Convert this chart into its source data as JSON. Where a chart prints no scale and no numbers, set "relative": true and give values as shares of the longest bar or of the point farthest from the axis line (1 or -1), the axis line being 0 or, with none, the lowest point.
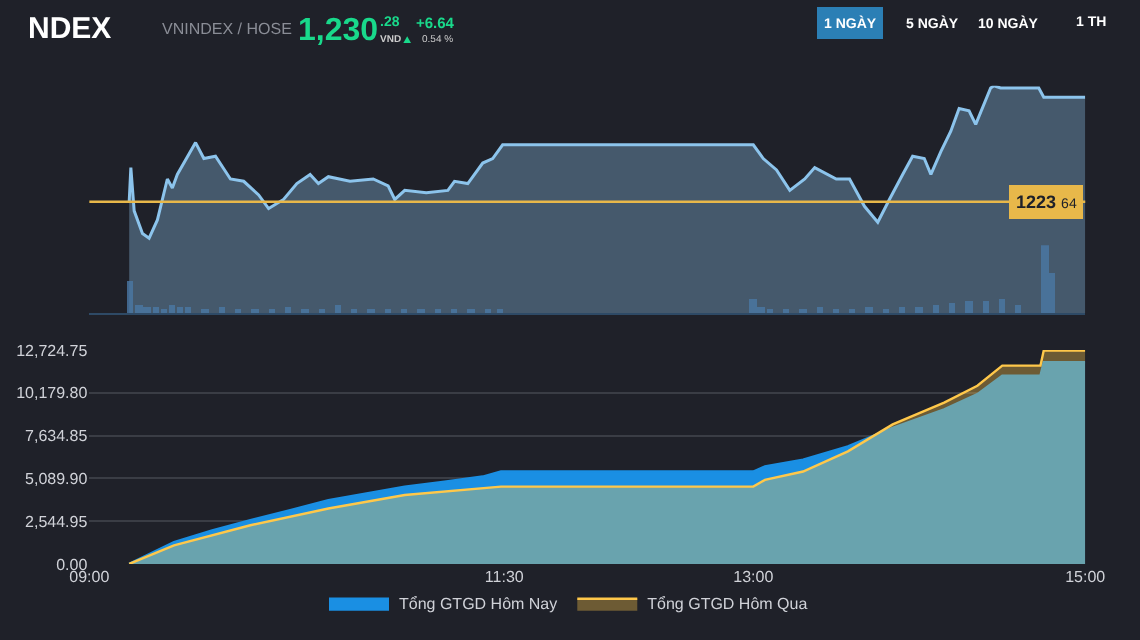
{
  "chart_data": [
    {
      "type": "other",
      "annotations": [
        "NDEX",
        "VNINDEX / HOSE",
        "1,230",
        ".28",
        "VND",
        "+6.64",
        "0.54 %",
        "1 NGÀY",
        "5 NGÀY",
        "10 NGÀY",
        "1 TH"
      ]
    },
    {
      "type": "area",
      "relative": true,
      "xlim": [
        9,
        15
      ],
      "x": [
        9.24,
        9.25,
        9.27,
        9.32,
        9.36,
        9.41,
        9.47,
        9.5,
        9.53,
        9.64,
        9.69,
        9.76,
        9.85,
        9.93,
        10.02,
        10.08,
        10.17,
        10.25,
        10.33,
        10.38,
        10.44,
        10.57,
        10.71,
        10.8,
        10.84,
        10.9,
        11.03,
        11.16,
        11.2,
        11.28,
        11.37,
        11.43,
        11.49,
        13.0,
        13.06,
        13.14,
        13.22,
        13.31,
        13.37,
        13.5,
        13.58,
        13.67,
        13.75,
        13.82,
        13.9,
        13.96,
        14.03,
        14.07,
        14.13,
        14.19,
        14.24,
        14.3,
        14.34,
        14.43,
        14.45,
        14.49,
        14.72,
        14.75,
        15.0
      ],
      "series": [
        {
          "color": "#8cc4ec",
          "values": [
            0.49,
            0.64,
            0.45,
            0.35,
            0.33,
            0.41,
            0.59,
            0.55,
            0.61,
            0.75,
            0.68,
            0.69,
            0.59,
            0.58,
            0.52,
            0.46,
            0.5,
            0.57,
            0.61,
            0.57,
            0.6,
            0.58,
            0.59,
            0.56,
            0.5,
            0.54,
            0.53,
            0.54,
            0.58,
            0.57,
            0.66,
            0.68,
            0.74,
            0.74,
            0.68,
            0.63,
            0.54,
            0.59,
            0.64,
            0.59,
            0.59,
            0.47,
            0.4,
            0.5,
            0.61,
            0.69,
            0.68,
            0.61,
            0.71,
            0.8,
            0.9,
            0.89,
            0.83,
            0.99,
            1.0,
            0.99,
            0.99,
            0.95,
            0.95
          ]
        }
      ],
      "ref_lines": [
        {
          "axis": "y",
          "value": 0.49,
          "color": "#e8b84a"
        }
      ],
      "annotations": [
        "1223 64"
      ]
    },
    {
      "type": "bar",
      "relative": true,
      "xlim": [
        9,
        15
      ],
      "x": [
        9.25,
        9.3,
        9.35,
        9.4,
        9.45,
        9.5,
        9.55,
        9.6,
        9.7,
        9.8,
        9.9,
        10.0,
        10.1,
        10.2,
        10.3,
        10.4,
        10.5,
        10.6,
        10.7,
        10.8,
        10.9,
        11.0,
        11.1,
        11.2,
        11.3,
        11.4,
        11.48,
        13.0,
        13.05,
        13.1,
        13.2,
        13.3,
        13.4,
        13.5,
        13.6,
        13.7,
        13.8,
        13.9,
        14.0,
        14.1,
        14.2,
        14.3,
        14.4,
        14.5,
        14.6,
        14.76,
        14.8
      ],
      "series": [
        {
          "color": "#4a78a6",
          "values": [
            0.47,
            0.12,
            0.08,
            0.1,
            0.07,
            0.12,
            0.08,
            0.09,
            0.07,
            0.08,
            0.06,
            0.07,
            0.06,
            0.08,
            0.06,
            0.07,
            0.12,
            0.06,
            0.05,
            0.07,
            0.05,
            0.06,
            0.05,
            0.06,
            0.05,
            0.06,
            0.05,
            0.21,
            0.1,
            0.07,
            0.06,
            0.07,
            0.08,
            0.06,
            0.07,
            0.1,
            0.07,
            0.09,
            0.1,
            0.12,
            0.15,
            0.18,
            0.17,
            0.2,
            0.12,
            1.0,
            0.6
          ]
        }
      ]
    },
    {
      "type": "area",
      "xlim": [
        9,
        15
      ],
      "ylim": [
        0,
        12724.75
      ],
      "grid": "y",
      "legend": "bottom",
      "xticks": [
        {
          "value": 9,
          "label": "09:00"
        },
        {
          "value": 11.5,
          "label": "11:30"
        },
        {
          "value": 13,
          "label": "13:00"
        },
        {
          "value": 15,
          "label": "15:00"
        }
      ],
      "yticks": [
        {
          "value": 0,
          "label": "0.00"
        },
        {
          "value": 2544.95,
          "label": "2,544.95"
        },
        {
          "value": 5089.9,
          "label": "5,089.90"
        },
        {
          "value": 7634.85,
          "label": "7,634.85"
        },
        {
          "value": 10179.8,
          "label": "10,179.80"
        },
        {
          "value": 12724.75,
          "label": "12,724.75"
        }
      ],
      "series": [
        {
          "name": "Tổng GTGD Hôm Nay",
          "color": "#1a8fe3",
          "x": [
            9.24,
            9.51,
            9.74,
            9.97,
            10.21,
            10.44,
            10.67,
            10.9,
            11.14,
            11.37,
            11.48,
            13.0,
            13.07,
            13.3,
            13.57,
            13.84,
            14.15,
            14.35,
            14.5,
            14.73,
            14.75,
            15.0
          ],
          "values": [
            0,
            1300,
            2000,
            2600,
            3200,
            3800,
            4200,
            4600,
            4900,
            5200,
            5500,
            5500,
            5800,
            6200,
            7000,
            8100,
            9200,
            10100,
            11200,
            11200,
            12000,
            12000
          ]
        },
        {
          "name": "Tổng GTGD Hôm Qua",
          "color": "#ffc84a",
          "x": [
            9.24,
            9.51,
            9.97,
            10.44,
            10.9,
            11.48,
            13.0,
            13.07,
            13.3,
            13.57,
            13.84,
            14.15,
            14.35,
            14.5,
            14.73,
            14.75,
            15.0
          ],
          "values": [
            0,
            1100,
            2300,
            3300,
            4100,
            4600,
            4600,
            5000,
            5500,
            6700,
            8300,
            9600,
            10600,
            11800,
            11800,
            12700,
            12700
          ]
        }
      ]
    }
  ]
}
